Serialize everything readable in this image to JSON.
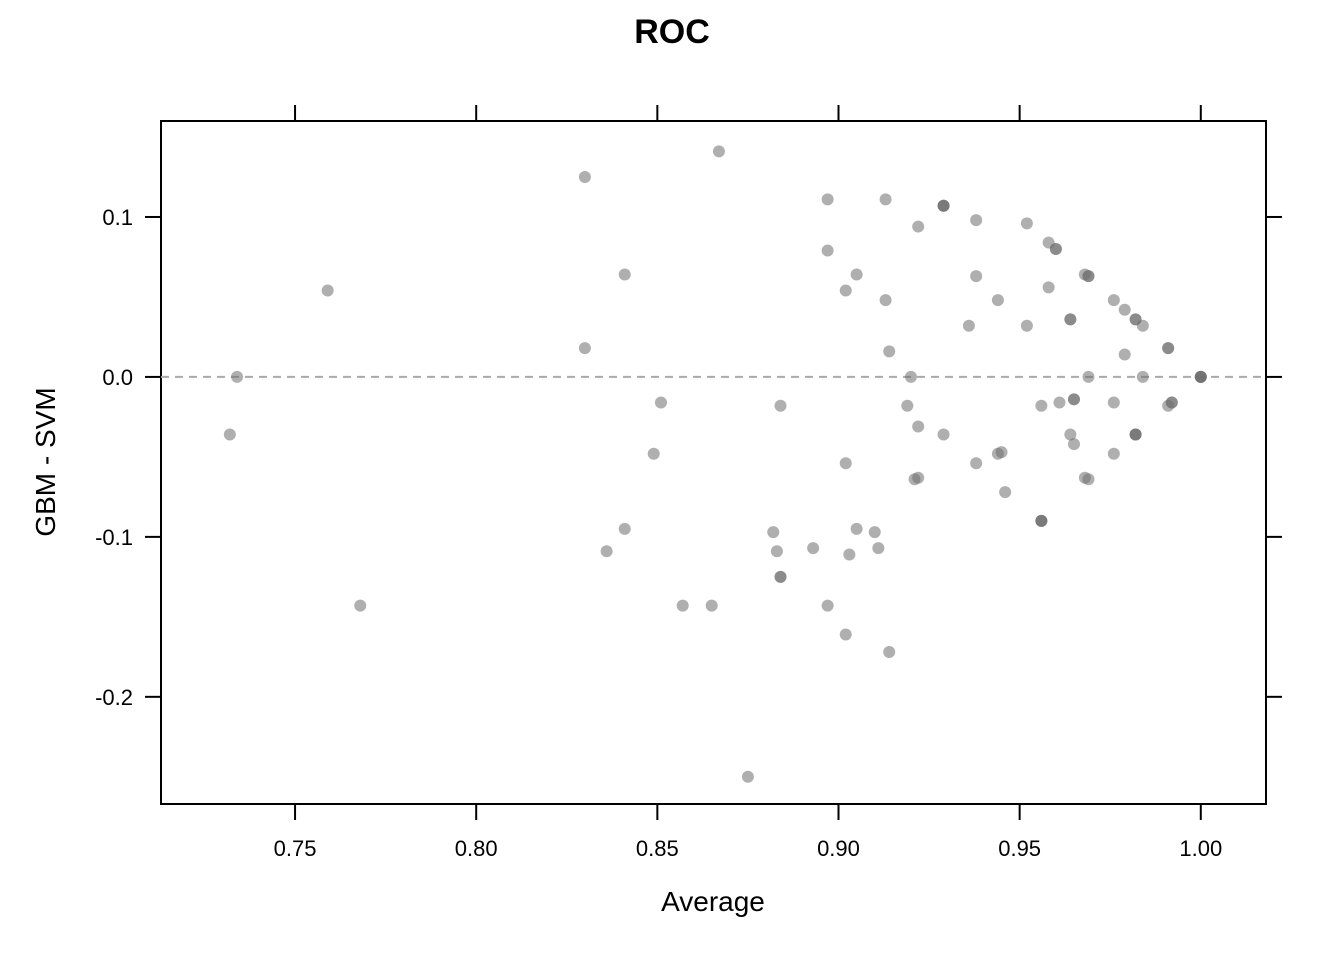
{
  "chart_data": {
    "type": "scatter",
    "title": "ROC",
    "xlabel": "Average",
    "ylabel": "GBM - SVM",
    "xlim": [
      0.713,
      1.018
    ],
    "ylim": [
      -0.267,
      0.16
    ],
    "xticks": [
      0.75,
      0.8,
      0.85,
      0.9,
      0.95,
      1.0
    ],
    "xtick_labels": [
      "0.75",
      "0.80",
      "0.85",
      "0.90",
      "0.95",
      "1.00"
    ],
    "yticks": [
      -0.2,
      -0.1,
      0.0,
      0.1
    ],
    "ytick_labels": [
      "-0.2",
      "-0.1",
      "0.0",
      "0.1"
    ],
    "reference_line": {
      "y": 0.0,
      "style": "dashed",
      "color": "#aaaaaa"
    },
    "grid": false,
    "point_color": "#6e6e6e",
    "point_opacity": 0.55,
    "points": [
      {
        "x": 0.732,
        "y": -0.036
      },
      {
        "x": 0.734,
        "y": 0.0
      },
      {
        "x": 0.759,
        "y": 0.054
      },
      {
        "x": 0.768,
        "y": -0.143
      },
      {
        "x": 0.83,
        "y": 0.125
      },
      {
        "x": 0.83,
        "y": 0.018
      },
      {
        "x": 0.836,
        "y": -0.109
      },
      {
        "x": 0.841,
        "y": 0.064
      },
      {
        "x": 0.841,
        "y": -0.095
      },
      {
        "x": 0.849,
        "y": -0.048
      },
      {
        "x": 0.851,
        "y": -0.016
      },
      {
        "x": 0.857,
        "y": -0.143
      },
      {
        "x": 0.865,
        "y": -0.143
      },
      {
        "x": 0.867,
        "y": 0.141
      },
      {
        "x": 0.875,
        "y": -0.25
      },
      {
        "x": 0.882,
        "y": -0.097
      },
      {
        "x": 0.883,
        "y": -0.109
      },
      {
        "x": 0.884,
        "y": -0.018
      },
      {
        "x": 0.884,
        "y": -0.125
      },
      {
        "x": 0.884,
        "y": -0.125
      },
      {
        "x": 0.893,
        "y": -0.107
      },
      {
        "x": 0.897,
        "y": 0.111
      },
      {
        "x": 0.897,
        "y": 0.079
      },
      {
        "x": 0.897,
        "y": -0.143
      },
      {
        "x": 0.902,
        "y": 0.054
      },
      {
        "x": 0.902,
        "y": -0.054
      },
      {
        "x": 0.902,
        "y": -0.161
      },
      {
        "x": 0.903,
        "y": -0.111
      },
      {
        "x": 0.905,
        "y": 0.064
      },
      {
        "x": 0.905,
        "y": -0.095
      },
      {
        "x": 0.91,
        "y": -0.097
      },
      {
        "x": 0.911,
        "y": -0.107
      },
      {
        "x": 0.913,
        "y": 0.111
      },
      {
        "x": 0.913,
        "y": 0.048
      },
      {
        "x": 0.914,
        "y": 0.016
      },
      {
        "x": 0.914,
        "y": -0.172
      },
      {
        "x": 0.919,
        "y": -0.018
      },
      {
        "x": 0.92,
        "y": 0.0
      },
      {
        "x": 0.921,
        "y": -0.064
      },
      {
        "x": 0.922,
        "y": 0.094
      },
      {
        "x": 0.922,
        "y": -0.031
      },
      {
        "x": 0.922,
        "y": -0.063
      },
      {
        "x": 0.929,
        "y": 0.107
      },
      {
        "x": 0.929,
        "y": 0.107
      },
      {
        "x": 0.929,
        "y": 0.107
      },
      {
        "x": 0.929,
        "y": -0.036
      },
      {
        "x": 0.936,
        "y": 0.032
      },
      {
        "x": 0.938,
        "y": 0.098
      },
      {
        "x": 0.938,
        "y": 0.063
      },
      {
        "x": 0.938,
        "y": -0.054
      },
      {
        "x": 0.944,
        "y": 0.048
      },
      {
        "x": 0.944,
        "y": -0.048
      },
      {
        "x": 0.945,
        "y": -0.047
      },
      {
        "x": 0.946,
        "y": -0.072
      },
      {
        "x": 0.952,
        "y": 0.096
      },
      {
        "x": 0.952,
        "y": 0.032
      },
      {
        "x": 0.956,
        "y": -0.018
      },
      {
        "x": 0.956,
        "y": -0.09
      },
      {
        "x": 0.956,
        "y": -0.09
      },
      {
        "x": 0.956,
        "y": -0.09
      },
      {
        "x": 0.958,
        "y": 0.084
      },
      {
        "x": 0.958,
        "y": 0.056
      },
      {
        "x": 0.96,
        "y": 0.08
      },
      {
        "x": 0.96,
        "y": 0.08
      },
      {
        "x": 0.961,
        "y": -0.016
      },
      {
        "x": 0.964,
        "y": 0.036
      },
      {
        "x": 0.964,
        "y": 0.036
      },
      {
        "x": 0.964,
        "y": -0.036
      },
      {
        "x": 0.965,
        "y": -0.014
      },
      {
        "x": 0.965,
        "y": -0.014
      },
      {
        "x": 0.965,
        "y": -0.042
      },
      {
        "x": 0.968,
        "y": 0.064
      },
      {
        "x": 0.969,
        "y": 0.063
      },
      {
        "x": 0.969,
        "y": 0.063
      },
      {
        "x": 0.969,
        "y": 0.0
      },
      {
        "x": 0.968,
        "y": -0.063
      },
      {
        "x": 0.969,
        "y": -0.064
      },
      {
        "x": 0.976,
        "y": 0.048
      },
      {
        "x": 0.976,
        "y": -0.016
      },
      {
        "x": 0.976,
        "y": -0.048
      },
      {
        "x": 0.979,
        "y": 0.042
      },
      {
        "x": 0.979,
        "y": 0.014
      },
      {
        "x": 0.982,
        "y": 0.036
      },
      {
        "x": 0.982,
        "y": 0.036
      },
      {
        "x": 0.982,
        "y": -0.036
      },
      {
        "x": 0.982,
        "y": -0.036
      },
      {
        "x": 0.982,
        "y": -0.036
      },
      {
        "x": 0.984,
        "y": 0.032
      },
      {
        "x": 0.984,
        "y": 0.0
      },
      {
        "x": 0.991,
        "y": 0.018
      },
      {
        "x": 0.991,
        "y": 0.018
      },
      {
        "x": 0.991,
        "y": -0.018
      },
      {
        "x": 0.992,
        "y": -0.016
      },
      {
        "x": 0.992,
        "y": -0.016
      },
      {
        "x": 1.0,
        "y": 0.0
      },
      {
        "x": 1.0,
        "y": 0.0
      },
      {
        "x": 1.0,
        "y": 0.0
      },
      {
        "x": 1.0,
        "y": 0.0
      }
    ]
  }
}
